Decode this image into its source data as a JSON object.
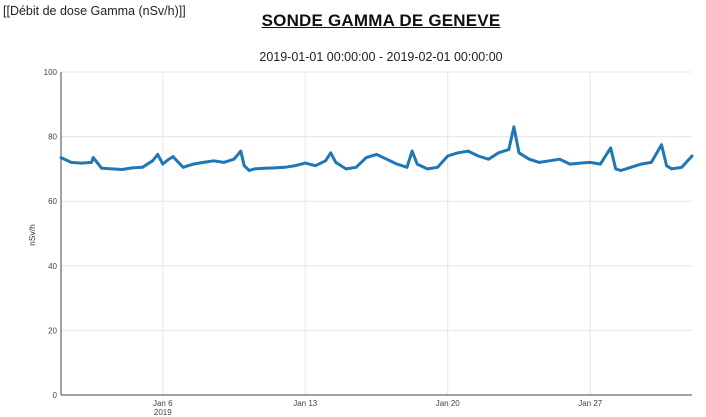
{
  "header": {
    "corner_label": "[[Débit de dose Gamma (nSv/h)]]",
    "title": "SONDE GAMMA DE GENEVE",
    "date_range": "2019-01-01 00:00:00 - 2019-02-01 00:00:00"
  },
  "colors": {
    "line": "#1f77b4",
    "grid": "#e6e6e6",
    "axis": "#444444"
  },
  "chart_data": {
    "type": "line",
    "title": "SONDE GAMMA DE GENEVE",
    "subtitle": "2019-01-01 00:00:00 - 2019-02-01 00:00:00",
    "xlabel": "",
    "ylabel": "nSv/h",
    "x_range": [
      "2019-01-01",
      "2019-02-01"
    ],
    "ylim": [
      0,
      100
    ],
    "y_ticks": [
      0,
      20,
      40,
      60,
      80,
      100
    ],
    "x_ticks": [
      {
        "date": "2019-01-06",
        "label": "Jan 6",
        "sublabel": "2019"
      },
      {
        "date": "2019-01-13",
        "label": "Jan 13",
        "sublabel": ""
      },
      {
        "date": "2019-01-20",
        "label": "Jan 20",
        "sublabel": ""
      },
      {
        "date": "2019-01-27",
        "label": "Jan 27",
        "sublabel": ""
      }
    ],
    "grid": true,
    "series": [
      {
        "x": [
          "2019-01-01 00:00",
          "2019-01-01 12:00",
          "2019-01-02 00:00",
          "2019-01-02 12:00",
          "2019-01-02 14:00",
          "2019-01-03 00:00",
          "2019-01-03 12:00",
          "2019-01-04 00:00",
          "2019-01-04 12:00",
          "2019-01-05 00:00",
          "2019-01-05 12:00",
          "2019-01-05 18:00",
          "2019-01-06 00:00",
          "2019-01-06 06:00",
          "2019-01-06 12:00",
          "2019-01-07 00:00",
          "2019-01-07 06:00",
          "2019-01-07 12:00",
          "2019-01-08 00:00",
          "2019-01-08 12:00",
          "2019-01-09 00:00",
          "2019-01-09 12:00",
          "2019-01-09 20:00",
          "2019-01-10 00:00",
          "2019-01-10 06:00",
          "2019-01-10 12:00",
          "2019-01-11 00:00",
          "2019-01-11 12:00",
          "2019-01-12 00:00",
          "2019-01-12 12:00",
          "2019-01-13 00:00",
          "2019-01-13 12:00",
          "2019-01-14 00:00",
          "2019-01-14 06:00",
          "2019-01-14 12:00",
          "2019-01-15 00:00",
          "2019-01-15 12:00",
          "2019-01-16 00:00",
          "2019-01-16 12:00",
          "2019-01-17 00:00",
          "2019-01-17 12:00",
          "2019-01-18 00:00",
          "2019-01-18 06:00",
          "2019-01-18 12:00",
          "2019-01-19 00:00",
          "2019-01-19 12:00",
          "2019-01-20 00:00",
          "2019-01-20 12:00",
          "2019-01-21 00:00",
          "2019-01-21 12:00",
          "2019-01-22 00:00",
          "2019-01-22 12:00",
          "2019-01-23 00:00",
          "2019-01-23 06:00",
          "2019-01-23 12:00",
          "2019-01-24 00:00",
          "2019-01-24 12:00",
          "2019-01-25 00:00",
          "2019-01-25 12:00",
          "2019-01-26 00:00",
          "2019-01-26 12:00",
          "2019-01-27 00:00",
          "2019-01-27 12:00",
          "2019-01-28 00:00",
          "2019-01-28 06:00",
          "2019-01-28 12:00",
          "2019-01-29 00:00",
          "2019-01-29 12:00",
          "2019-01-30 00:00",
          "2019-01-30 12:00",
          "2019-01-30 18:00",
          "2019-01-31 00:00",
          "2019-01-31 12:00",
          "2019-02-01 00:00"
        ],
        "y": [
          73.5,
          72.0,
          71.8,
          72.0,
          73.5,
          70.2,
          70.0,
          69.8,
          70.3,
          70.5,
          72.5,
          74.5,
          71.5,
          72.8,
          73.8,
          70.5,
          71.0,
          71.5,
          72.0,
          72.5,
          72.0,
          73.0,
          75.5,
          71.0,
          69.5,
          70.0,
          70.2,
          70.3,
          70.5,
          71.0,
          71.8,
          71.0,
          72.5,
          75.0,
          72.0,
          70.0,
          70.5,
          73.5,
          74.5,
          73.0,
          71.5,
          70.5,
          75.5,
          71.5,
          70.0,
          70.5,
          74.0,
          75.0,
          75.5,
          74.0,
          73.0,
          75.0,
          76.0,
          83.0,
          75.0,
          73.0,
          72.0,
          72.5,
          73.0,
          71.5,
          71.8,
          72.0,
          71.5,
          76.5,
          70.0,
          69.5,
          70.5,
          71.5,
          72.0,
          77.5,
          71.0,
          70.0,
          70.5,
          74.0
        ]
      }
    ]
  }
}
